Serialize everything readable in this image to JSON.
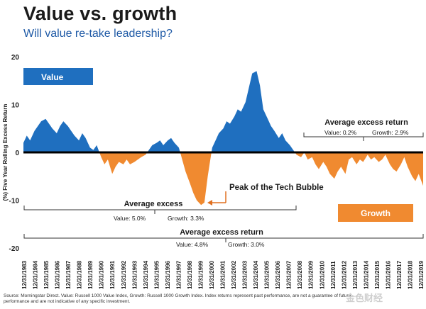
{
  "header": {
    "title": "Value vs. growth",
    "subtitle": "Will value re-take leadership?"
  },
  "colors": {
    "value": "#1f6fbf",
    "growth": "#f08a30",
    "zero_line": "#000000",
    "label_growth_text": "#e07020"
  },
  "chart_data": {
    "type": "area",
    "title": "Value vs. growth",
    "subtitle": "Will value re-take leadership?",
    "ylabel": "(%) Five Year Rolling Excess Return",
    "xlabel": "",
    "ylim": [
      -20,
      20
    ],
    "yticks": [
      20,
      10,
      0,
      -10,
      -20
    ],
    "xlim": [
      1983,
      2019
    ],
    "x_ticks": [
      "12/31/1983",
      "12/31/1984",
      "12/31/1985",
      "12/31/1986",
      "12/31/1987",
      "12/31/1988",
      "12/31/1989",
      "12/31/1990",
      "12/31/1991",
      "12/31/1992",
      "12/31/1993",
      "12/31/1994",
      "12/31/1995",
      "12/31/1996",
      "12/31/1997",
      "12/31/1998",
      "12/31/1999",
      "12/31/2000",
      "12/31/2001",
      "12/31/2002",
      "12/31/2003",
      "12/31/2004",
      "12/31/2005",
      "12/31/2006",
      "12/31/2007",
      "12/31/2008",
      "12/31/2009",
      "12/31/2010",
      "12/31/2011",
      "12/31/2012",
      "12/31/2013",
      "12/31/2014",
      "12/31/2015",
      "12/31/2016",
      "12/31/2017",
      "12/31/2018",
      "12/31/2019"
    ],
    "legend": [
      {
        "name": "Value",
        "color": "#1f6fbf",
        "position": "top-left"
      },
      {
        "name": "Growth",
        "color": "#f08a30",
        "position": "bottom-right"
      }
    ],
    "series": [
      {
        "name": "Five Year Rolling Excess Return",
        "x": [
          1983.0,
          1983.3,
          1983.6,
          1984.0,
          1984.3,
          1984.6,
          1985.0,
          1985.3,
          1985.6,
          1986.0,
          1986.3,
          1986.6,
          1987.0,
          1987.3,
          1987.6,
          1988.0,
          1988.3,
          1988.6,
          1989.0,
          1989.3,
          1989.6,
          1990.0,
          1990.3,
          1990.6,
          1991.0,
          1991.3,
          1991.6,
          1992.0,
          1992.3,
          1992.6,
          1993.0,
          1993.3,
          1993.6,
          1994.0,
          1994.3,
          1994.6,
          1995.0,
          1995.3,
          1995.6,
          1996.0,
          1996.3,
          1996.6,
          1997.0,
          1997.3,
          1997.6,
          1998.0,
          1998.3,
          1998.6,
          1999.0,
          1999.3,
          1999.6,
          2000.0,
          2000.3,
          2000.6,
          2001.0,
          2001.3,
          2001.6,
          2002.0,
          2002.3,
          2002.6,
          2003.0,
          2003.3,
          2003.6,
          2004.0,
          2004.3,
          2004.6,
          2005.0,
          2005.3,
          2005.6,
          2006.0,
          2006.3,
          2006.6,
          2007.0,
          2007.3,
          2007.6,
          2008.0,
          2008.3,
          2008.6,
          2009.0,
          2009.3,
          2009.6,
          2010.0,
          2010.3,
          2010.6,
          2011.0,
          2011.3,
          2011.6,
          2012.0,
          2012.3,
          2012.6,
          2013.0,
          2013.3,
          2013.6,
          2014.0,
          2014.3,
          2014.6,
          2015.0,
          2015.3,
          2015.6,
          2016.0,
          2016.3,
          2016.6,
          2017.0,
          2017.3,
          2017.6,
          2018.0,
          2018.3,
          2018.6,
          2019.0
        ],
        "y": [
          2.0,
          3.5,
          2.5,
          4.5,
          5.5,
          6.5,
          7.0,
          6.0,
          5.0,
          4.0,
          5.5,
          6.5,
          5.5,
          4.5,
          3.5,
          2.5,
          4.0,
          3.0,
          1.0,
          0.5,
          1.5,
          -1.0,
          -2.5,
          -1.5,
          -4.5,
          -3.0,
          -2.0,
          -2.5,
          -1.5,
          -2.5,
          -2.0,
          -1.5,
          -1.0,
          -0.5,
          0.5,
          1.5,
          2.0,
          2.5,
          1.5,
          2.5,
          3.0,
          2.0,
          1.0,
          -1.5,
          -4.0,
          -6.5,
          -8.5,
          -10.0,
          -11.0,
          -10.5,
          -5.0,
          1.0,
          2.5,
          4.0,
          5.0,
          6.5,
          6.0,
          7.5,
          9.0,
          8.5,
          10.5,
          13.5,
          16.5,
          17.0,
          14.0,
          9.0,
          7.0,
          5.5,
          4.5,
          3.0,
          4.0,
          2.5,
          1.5,
          0.5,
          -0.5,
          -1.0,
          0.0,
          -1.5,
          -1.0,
          -2.5,
          -3.5,
          -2.0,
          -3.0,
          -4.5,
          -5.5,
          -4.0,
          -3.0,
          -4.5,
          -1.5,
          -1.0,
          -2.5,
          -1.5,
          -2.0,
          -0.5,
          -1.5,
          -1.0,
          -2.0,
          -1.5,
          -0.5,
          -2.5,
          -3.5,
          -4.0,
          -2.5,
          -1.0,
          -3.0,
          -5.0,
          -6.0,
          -4.5,
          -7.0
        ]
      }
    ],
    "annotations": [
      {
        "text": "Peak of the Tech Bubble",
        "x": 1999.5,
        "y": -11.0
      },
      {
        "text": "Average excess return",
        "period": "2008-2019",
        "items": [
          "Value: 0.2%",
          "Growth: 2.9%"
        ]
      },
      {
        "text": "Average excess",
        "period": "1983-2008",
        "items": [
          "Value: 5.0%",
          "Growth: 3.3%"
        ]
      },
      {
        "text": "Average excess return",
        "period": "1983-2019",
        "items": [
          "Value: 4.8%",
          "Growth: 3.0%"
        ]
      }
    ]
  },
  "source_note": "Source: Morningstar Direct. Value: Russell 1000 Value Index, Growth: Russell 1000 Growth Index. Index returns represent past performance, are not a guarantee of future performance and are not indicative of any specific investment.",
  "watermark": "金色财经"
}
